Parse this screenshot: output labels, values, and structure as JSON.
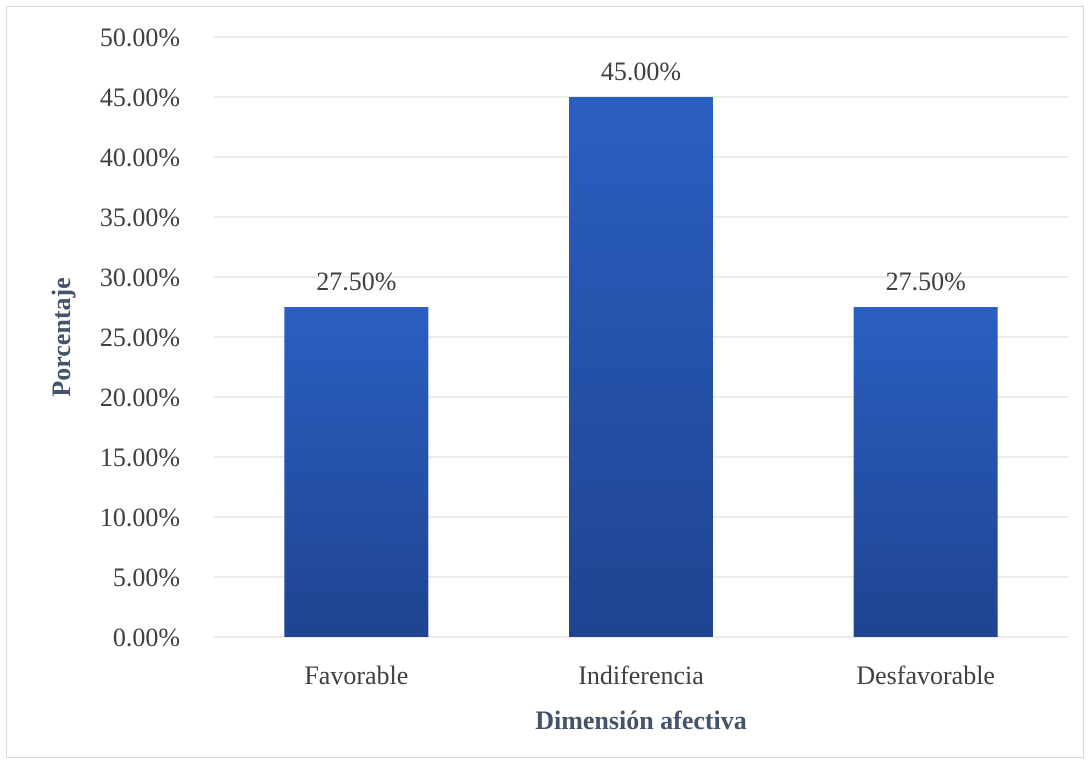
{
  "chart_data": {
    "type": "bar",
    "title": "",
    "xlabel": "Dimensión afectiva",
    "ylabel": "Porcentaje",
    "categories": [
      "Favorable",
      "Indiferencia",
      "Desfavorable"
    ],
    "values": [
      27.5,
      45.0,
      27.5
    ],
    "data_labels": [
      "27.50%",
      "45.00%",
      "27.50%"
    ],
    "ylim": [
      0,
      50
    ],
    "y_ticks": [
      0,
      5,
      10,
      15,
      20,
      25,
      30,
      35,
      40,
      45,
      50
    ],
    "y_tick_labels": [
      "0.00%",
      "5.00%",
      "10.00%",
      "15.00%",
      "20.00%",
      "25.00%",
      "30.00%",
      "35.00%",
      "40.00%",
      "45.00%",
      "50.00%"
    ],
    "grid": true,
    "legend": "none",
    "colors": {
      "bar_top": "#2a5fc2",
      "bar_bottom": "#1f4490",
      "gridline": "#d9d9d9",
      "axis_title": "#44546a",
      "text": "#404040"
    }
  }
}
